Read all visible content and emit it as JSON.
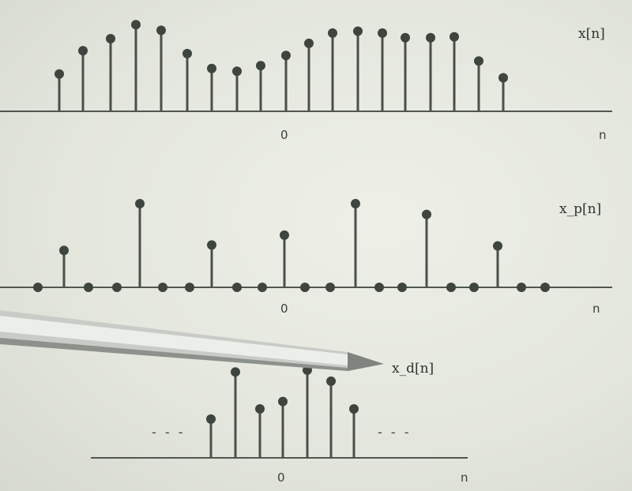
{
  "panels": [
    {
      "label": "x[n]",
      "origin_label": "0",
      "axis_label": "n",
      "values": [
        0.4,
        0.65,
        0.78,
        0.93,
        0.87,
        0.62,
        0.46,
        0.43,
        0.49,
        0.6,
        0.73,
        0.84,
        0.86,
        0.84,
        0.79,
        0.79,
        0.8,
        0.54,
        0.36
      ],
      "origin_index": 9
    },
    {
      "label": "x_p[n]",
      "origin_label": "0",
      "axis_label": "n",
      "values": [
        0,
        0.41,
        0,
        0,
        0.93,
        0,
        0,
        0.47,
        0,
        0,
        0.58,
        0,
        0,
        0.93,
        0,
        0,
        0.81,
        0,
        0,
        0.46,
        0,
        0
      ],
      "origin_index": 10
    },
    {
      "label": "x_d[n]",
      "origin_label": "0",
      "axis_label": "n",
      "values": [
        0.42,
        0.93,
        0.53,
        0.61,
        0.95,
        0.83,
        0.53
      ],
      "origin_index": 3,
      "ellipsis": "- - -"
    }
  ],
  "colors": {
    "stem": "#4a4f4a",
    "axis": "#505650",
    "background": "#e6e9df"
  }
}
